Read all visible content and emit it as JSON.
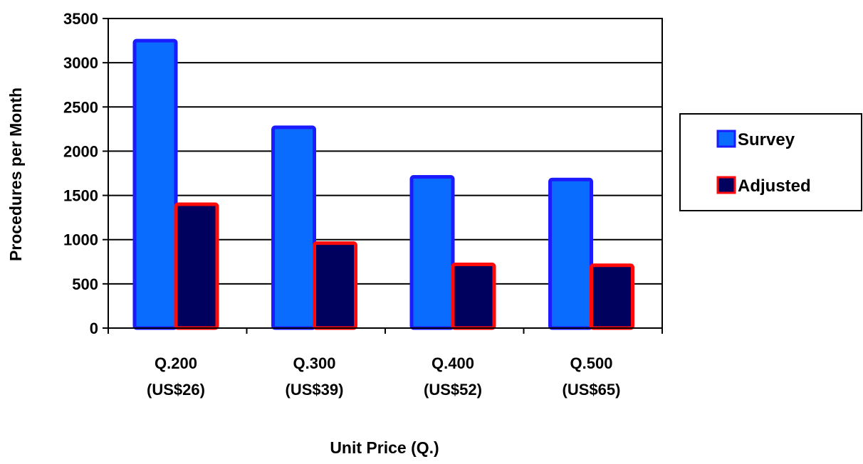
{
  "chart_data": {
    "type": "bar",
    "categories": [
      [
        "Q.200",
        "(US$26)"
      ],
      [
        "Q.300",
        "(US$39)"
      ],
      [
        "Q.400",
        "(US$52)"
      ],
      [
        "Q.500",
        "(US$65)"
      ]
    ],
    "series": [
      {
        "name": "Survey",
        "values": [
          3250,
          2270,
          1710,
          1680
        ],
        "fill": "#0a6cff",
        "stroke": "#1b1bff"
      },
      {
        "name": "Adjusted",
        "values": [
          1400,
          960,
          720,
          710
        ],
        "fill": "#00005e",
        "stroke": "#ff0a0a"
      }
    ],
    "xlabel": "Unit Price (Q.)",
    "ylabel": "Procedures per Month",
    "ylim": [
      0,
      3500
    ],
    "yticks": [
      0,
      500,
      1000,
      1500,
      2000,
      2500,
      3000,
      3500
    ],
    "grid": true,
    "legend_position": "right"
  }
}
